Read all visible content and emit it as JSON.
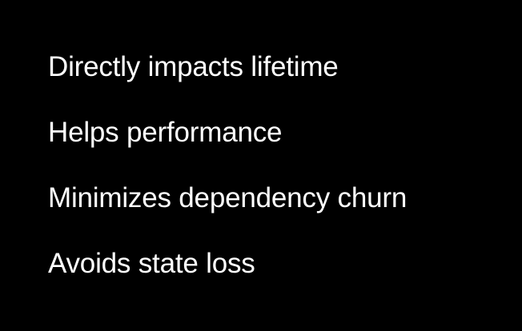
{
  "slide": {
    "background_color": "#000000",
    "text_color": "#ffffff",
    "bullets": [
      "Directly impacts lifetime",
      "Helps performance",
      "Minimizes dependency churn",
      "Avoids state loss"
    ]
  }
}
